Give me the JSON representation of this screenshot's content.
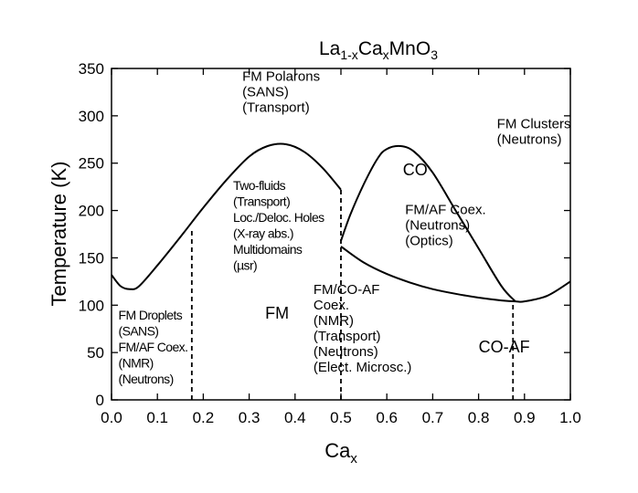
{
  "chart_data": {
    "type": "line",
    "title": {
      "base": "La",
      "sub1": "1-x",
      "mid": "Ca",
      "sub2": "x",
      "end": "MnO",
      "sub3": "3"
    },
    "xlabel": {
      "base": "Ca",
      "sub": "x"
    },
    "ylabel": "Temperature (K)",
    "xlim": [
      0.0,
      1.0
    ],
    "ylim": [
      0,
      350
    ],
    "xticks": [
      "0.0",
      "0.1",
      "0.2",
      "0.3",
      "0.4",
      "0.5",
      "0.6",
      "0.7",
      "0.8",
      "0.9",
      "1.0"
    ],
    "xtick_values": [
      0.0,
      0.1,
      0.2,
      0.3,
      0.4,
      0.5,
      0.6,
      0.7,
      0.8,
      0.9,
      1.0
    ],
    "yticks": [
      "0",
      "50",
      "100",
      "150",
      "200",
      "250",
      "300",
      "350"
    ],
    "ytick_values": [
      0,
      50,
      100,
      150,
      200,
      250,
      300,
      350
    ],
    "grid": false,
    "series": [
      {
        "x": [
          0.0,
          0.02,
          0.04,
          0.06,
          0.1,
          0.15,
          0.2,
          0.25,
          0.3,
          0.34,
          0.38,
          0.42,
          0.46,
          0.5
        ],
        "y": [
          132,
          120,
          117,
          120,
          142,
          172,
          203,
          232,
          257,
          268,
          270,
          262,
          245,
          222
        ]
      },
      {
        "x": [
          0.5,
          0.52,
          0.55,
          0.58,
          0.6,
          0.63,
          0.66,
          0.7,
          0.75,
          0.8,
          0.85,
          0.88
        ],
        "y": [
          168,
          195,
          228,
          255,
          265,
          268,
          262,
          240,
          200,
          160,
          120,
          104
        ]
      },
      {
        "x": [
          0.5,
          0.55,
          0.6,
          0.65,
          0.7,
          0.75,
          0.8,
          0.85,
          0.88,
          0.9,
          0.95,
          1.0
        ],
        "y": [
          162,
          145,
          133,
          124,
          117,
          112,
          108,
          105,
          104,
          104,
          110,
          125
        ]
      }
    ],
    "phase_boundaries": [
      {
        "x": 0.175,
        "y": [
          0,
          182
        ]
      },
      {
        "x": 0.5,
        "y": [
          0,
          222
        ]
      },
      {
        "x": 0.875,
        "y": [
          0,
          104
        ]
      }
    ],
    "annotations": [
      {
        "lines": [
          "FM Polarons",
          "(SANS)",
          "(Transport)"
        ],
        "x": 0.285,
        "y": 337
      },
      {
        "lines": [
          "FM Clusters",
          "(Neutrons)"
        ],
        "x": 0.84,
        "y": 287
      },
      {
        "lines": [
          "CO"
        ],
        "x": 0.635,
        "y": 237
      },
      {
        "lines": [
          "FM/AF Coex.",
          "(Neutrons)",
          "(Optics)"
        ],
        "x": 0.64,
        "y": 196
      },
      {
        "lines": [
          "Two-fluids",
          "(Transport)",
          "Loc./Deloc. Holes",
          "(X-ray abs.)",
          "Multidomains",
          "(µsr)"
        ],
        "x": 0.265,
        "y": 222
      },
      {
        "lines": [
          "FM"
        ],
        "x": 0.335,
        "y": 86
      },
      {
        "lines": [
          "FM Droplets",
          "(SANS)",
          "FM/AF Coex.",
          "(NMR)",
          "(Neutrons)"
        ],
        "x": 0.015,
        "y": 85
      },
      {
        "lines": [
          "FM/CO-AF",
          "Coex.",
          "(NMR)",
          "(Transport)",
          "(Neutrons)",
          "(Elect. Microsc.)"
        ],
        "x": 0.44,
        "y": 112
      },
      {
        "lines": [
          "CO-AF"
        ],
        "x": 0.8,
        "y": 50
      }
    ]
  }
}
